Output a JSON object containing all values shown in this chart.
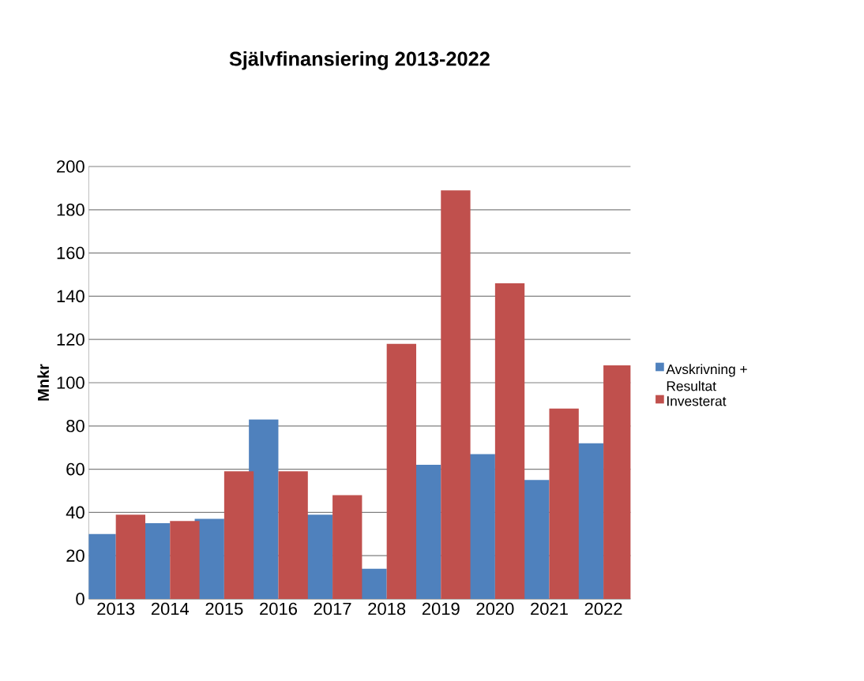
{
  "chart_data": {
    "type": "bar",
    "title": "Självfinansiering  2013-2022",
    "ylabel": "Mnkr",
    "categories": [
      "2013",
      "2014",
      "2015",
      "2016",
      "2017",
      "2018",
      "2019",
      "2020",
      "2021",
      "2022"
    ],
    "series": [
      {
        "name": "Avskrivning + Resultat",
        "color": "#4f81bd",
        "values": [
          30,
          35,
          37,
          83,
          39,
          14,
          62,
          67,
          55,
          72
        ]
      },
      {
        "name": "Investerat",
        "color": "#c0504d",
        "values": [
          39,
          36,
          59,
          59,
          48,
          118,
          189,
          146,
          88,
          108
        ]
      }
    ],
    "ylim": [
      0,
      200
    ],
    "yticks": [
      0,
      20,
      40,
      60,
      80,
      100,
      120,
      140,
      160,
      180,
      200
    ],
    "grid": "y",
    "legend": "right"
  }
}
